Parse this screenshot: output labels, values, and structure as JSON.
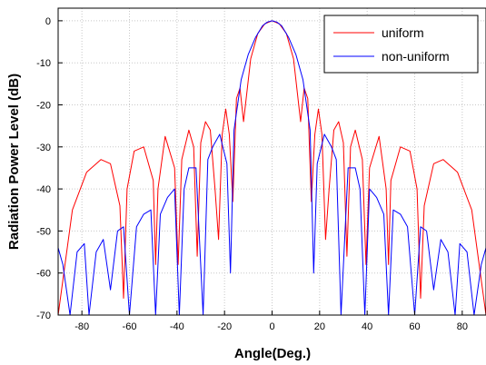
{
  "chart_data": {
    "type": "line",
    "title": "",
    "xlabel": "Angle(Deg.)",
    "ylabel": "Radiation Power Level (dB)",
    "xlim": [
      -90,
      90
    ],
    "ylim": [
      -70,
      3
    ],
    "xticks": [
      -80,
      -60,
      -40,
      -20,
      0,
      20,
      40,
      60,
      80
    ],
    "yticks": [
      0,
      -10,
      -20,
      -30,
      -40,
      -50,
      -60,
      -70
    ],
    "grid": true,
    "legend_position": "top-right",
    "series": [
      {
        "name": "uniform",
        "color": "#ff0000",
        "x": [
          -90,
          -84,
          -78,
          -72,
          -68,
          -64,
          -62.5,
          -61,
          -58,
          -54,
          -50,
          -49,
          -48,
          -45,
          -41,
          -39.5,
          -38,
          -35,
          -33,
          -31.5,
          -30,
          -28,
          -26,
          -24,
          -22.5,
          -21,
          -19.5,
          -18,
          -16.5,
          -15,
          -13.5,
          -12,
          -9,
          -6,
          -3,
          0,
          3,
          6,
          9,
          12,
          13.5,
          15,
          16.5,
          18,
          19.5,
          21,
          22.5,
          24,
          26,
          28,
          30,
          31.5,
          33,
          35,
          38,
          39.5,
          41,
          45,
          48,
          49,
          50,
          54,
          58,
          61,
          62.5,
          64,
          68,
          72,
          78,
          84,
          90
        ],
        "y": [
          -70,
          -45,
          -36,
          -33,
          -34,
          -44,
          -66,
          -40,
          -31,
          -30,
          -38,
          -58,
          -40,
          -27.5,
          -35,
          -58,
          -33,
          -26,
          -30,
          -56,
          -29,
          -24,
          -26,
          -40,
          -52,
          -27,
          -21,
          -27,
          -43,
          -18.5,
          -16,
          -24,
          -9,
          -3,
          -0.7,
          0,
          -0.7,
          -3,
          -9,
          -24,
          -16,
          -18.5,
          -43,
          -27,
          -21,
          -27,
          -52,
          -40,
          -26,
          -24,
          -29,
          -56,
          -30,
          -26,
          -33,
          -58,
          -35,
          -27.5,
          -40,
          -58,
          -38,
          -30,
          -31,
          -40,
          -66,
          -44,
          -34,
          -33,
          -36,
          -45,
          -70
        ]
      },
      {
        "name": "non-uniform",
        "color": "#0000ff",
        "x": [
          -90,
          -88,
          -85,
          -82,
          -79,
          -77,
          -74,
          -71,
          -68,
          -65,
          -62.5,
          -60,
          -57,
          -54,
          -51,
          -49,
          -47,
          -44,
          -41,
          -39,
          -37,
          -35,
          -32,
          -29,
          -27,
          -25,
          -22,
          -19,
          -17.5,
          -16,
          -13,
          -10,
          -7,
          -4,
          -2,
          0,
          2,
          4,
          7,
          10,
          13,
          16,
          17.5,
          19,
          22,
          25,
          27,
          29,
          32,
          35,
          37,
          39,
          41,
          44,
          47,
          49,
          51,
          54,
          57,
          60,
          62.5,
          65,
          68,
          71,
          74,
          77,
          79,
          82,
          85,
          88,
          90
        ],
        "y": [
          -54,
          -58,
          -70,
          -55,
          -53,
          -70,
          -55,
          -52,
          -64,
          -50,
          -49,
          -70,
          -49,
          -46,
          -45,
          -70,
          -46,
          -42,
          -40,
          -70,
          -40,
          -35,
          -35,
          -70,
          -33,
          -30,
          -27,
          -34,
          -60,
          -26,
          -14,
          -8,
          -4,
          -1.2,
          -0.3,
          0,
          -0.3,
          -1.2,
          -4,
          -8,
          -14,
          -26,
          -60,
          -34,
          -27,
          -30,
          -33,
          -70,
          -35,
          -35,
          -40,
          -70,
          -40,
          -42,
          -46,
          -70,
          -45,
          -46,
          -49,
          -70,
          -49,
          -50,
          -64,
          -52,
          -55,
          -70,
          -53,
          -55,
          -70,
          -58,
          -54
        ]
      }
    ]
  }
}
